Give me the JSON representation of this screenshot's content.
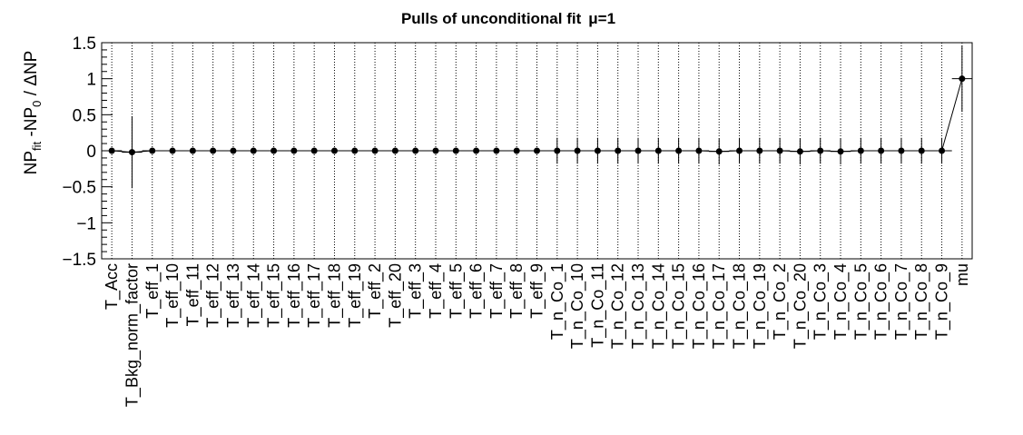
{
  "chart_data": {
    "type": "scatter",
    "title": "Pulls of unconditional fit",
    "title_mu": "μ=1",
    "ylabel": {
      "base1": "NP",
      "sub1": "fit",
      "mid": " -NP",
      "sub2": "0",
      "tail": " / ΔNP"
    },
    "ylim": [
      -1.5,
      1.5
    ],
    "yticks": [
      -1.5,
      -1,
      -0.5,
      0,
      0.5,
      1,
      1.5
    ],
    "ytick_labels": [
      "−1.5",
      "−1",
      "−0.5",
      "0",
      "0.5",
      "1",
      "1.5"
    ],
    "grid": "vertical dotted",
    "categories": [
      "T_Acc",
      "T_Bkg_norm_factor",
      "T_eff_1",
      "T_eff_10",
      "T_eff_11",
      "T_eff_12",
      "T_eff_13",
      "T_eff_14",
      "T_eff_15",
      "T_eff_16",
      "T_eff_17",
      "T_eff_18",
      "T_eff_19",
      "T_eff_2",
      "T_eff_20",
      "T_eff_3",
      "T_eff_4",
      "T_eff_5",
      "T_eff_6",
      "T_eff_7",
      "T_eff_8",
      "T_eff_9",
      "T_n_Co_1",
      "T_n_Co_10",
      "T_n_Co_11",
      "T_n_Co_12",
      "T_n_Co_13",
      "T_n_Co_14",
      "T_n_Co_15",
      "T_n_Co_16",
      "T_n_Co_17",
      "T_n_Co_18",
      "T_n_Co_19",
      "T_n_Co_2",
      "T_n_Co_20",
      "T_n_Co_3",
      "T_n_Co_4",
      "T_n_Co_5",
      "T_n_Co_6",
      "T_n_Co_7",
      "T_n_Co_8",
      "T_n_Co_9",
      "mu"
    ],
    "values": [
      0,
      -0.02,
      0,
      0,
      0,
      0,
      0,
      0,
      0,
      0,
      0,
      0,
      0,
      0,
      0,
      0,
      0,
      0,
      0,
      0,
      0,
      0,
      0,
      0,
      0,
      0,
      0,
      0,
      0,
      0,
      -0.01,
      0,
      0,
      0,
      -0.01,
      0,
      -0.01,
      0,
      0,
      0,
      0,
      0,
      1.0
    ],
    "errors": [
      0.01,
      0.5,
      0.01,
      0.01,
      0.01,
      0.01,
      0.01,
      0.01,
      0.01,
      0.01,
      0.01,
      0.01,
      0.01,
      0.01,
      0.01,
      0.01,
      0.01,
      0.01,
      0.01,
      0.01,
      0.01,
      0.01,
      0.18,
      0.18,
      0.18,
      0.18,
      0.18,
      0.18,
      0.18,
      0.18,
      0.18,
      0.18,
      0.18,
      0.18,
      0.18,
      0.18,
      0.18,
      0.18,
      0.18,
      0.18,
      0.18,
      0.18,
      0.46
    ],
    "colors": {
      "marker": "#000000",
      "grid": "#000000",
      "axis": "#000000"
    }
  }
}
